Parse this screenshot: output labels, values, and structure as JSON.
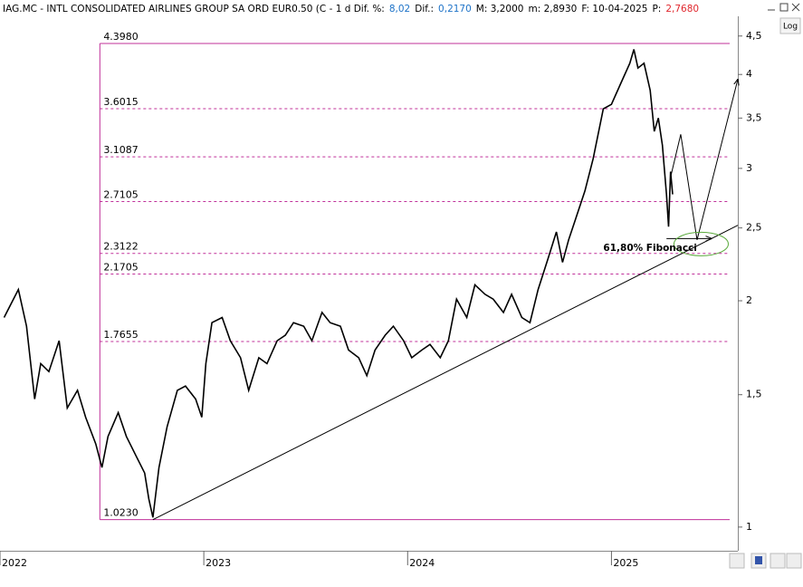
{
  "chart_data": {
    "type": "line",
    "header": [
      {
        "text": "IAG.MC - INTL CONSOLIDATED AIRLINES GROUP SA ORD EUR0.50 (C -  1 d  Dif. %:",
        "color": "#000000"
      },
      {
        "text": "8,02",
        "color": "#1e73c8"
      },
      {
        "text": "Dif.:",
        "color": "#000000"
      },
      {
        "text": "0,2170",
        "color": "#1e73c8"
      },
      {
        "text": "M: 3,2000",
        "color": "#000000"
      },
      {
        "text": "m: 2,8930",
        "color": "#000000"
      },
      {
        "text": "F: 10-04-2025",
        "color": "#000000"
      },
      {
        "text": "P:",
        "color": "#000000"
      },
      {
        "text": "2,7680",
        "color": "#e0282e"
      }
    ],
    "log_button": "Log",
    "log_scale": true,
    "xlim": [
      2022,
      2025.62
    ],
    "xticks": [
      2022,
      2023,
      2024,
      2025
    ],
    "ylim": [
      0.93,
      4.78
    ],
    "yticks": [
      1,
      {
        "value": 1.5,
        "label": "1,5"
      },
      2,
      {
        "value": 2.5,
        "label": "2,5"
      },
      3,
      {
        "value": 3.5,
        "label": "3,5"
      },
      4,
      {
        "value": 4.5,
        "label": "4,5"
      }
    ],
    "x": [
      2022.02,
      2022.09,
      2022.13,
      2022.17,
      2022.2,
      2022.24,
      2022.29,
      2022.33,
      2022.38,
      2022.42,
      2022.47,
      2022.5,
      2022.53,
      2022.58,
      2022.62,
      2022.67,
      2022.71,
      2022.73,
      2022.75,
      2022.78,
      2022.82,
      2022.87,
      2022.91,
      2022.96,
      2022.99,
      2023.01,
      2023.04,
      2023.09,
      2023.13,
      2023.18,
      2023.22,
      2023.27,
      2023.31,
      2023.36,
      2023.4,
      2023.44,
      2023.49,
      2023.53,
      2023.58,
      2023.62,
      2023.67,
      2023.71,
      2023.76,
      2023.8,
      2023.84,
      2023.89,
      2023.93,
      2023.98,
      2024.02,
      2024.07,
      2024.11,
      2024.16,
      2024.2,
      2024.24,
      2024.29,
      2024.33,
      2024.38,
      2024.42,
      2024.47,
      2024.51,
      2024.56,
      2024.6,
      2024.64,
      2024.69,
      2024.73,
      2024.76,
      2024.79,
      2024.82,
      2024.87,
      2024.91,
      2024.96,
      2025.0,
      2025.04,
      2025.09,
      2025.11,
      2025.13,
      2025.16,
      2025.19,
      2025.21,
      2025.23,
      2025.25,
      2025.27,
      2025.28,
      2025.29,
      2025.3
    ],
    "series": [
      {
        "name": "IAG.MC",
        "color": "#000000",
        "values": [
          1.9,
          2.07,
          1.85,
          1.48,
          1.65,
          1.61,
          1.77,
          1.44,
          1.52,
          1.4,
          1.29,
          1.2,
          1.32,
          1.42,
          1.32,
          1.24,
          1.18,
          1.09,
          1.03,
          1.2,
          1.36,
          1.52,
          1.54,
          1.48,
          1.4,
          1.65,
          1.87,
          1.9,
          1.77,
          1.68,
          1.52,
          1.68,
          1.65,
          1.77,
          1.8,
          1.87,
          1.85,
          1.77,
          1.93,
          1.87,
          1.85,
          1.72,
          1.68,
          1.59,
          1.72,
          1.8,
          1.85,
          1.77,
          1.68,
          1.72,
          1.75,
          1.68,
          1.77,
          2.01,
          1.9,
          2.1,
          2.04,
          2.01,
          1.93,
          2.04,
          1.9,
          1.87,
          2.07,
          2.28,
          2.47,
          2.25,
          2.41,
          2.55,
          2.8,
          3.09,
          3.6,
          3.65,
          3.86,
          4.14,
          4.32,
          4.08,
          4.14,
          3.81,
          3.36,
          3.5,
          3.22,
          2.77,
          2.51,
          2.97,
          2.77
        ]
      }
    ],
    "fib_color": "#c0309a",
    "fib_x": [
      2022.49,
      2025.58
    ],
    "fib_levels": [
      {
        "value": 4.398,
        "label": "4.3980"
      },
      {
        "value": 3.6015,
        "label": "3.6015"
      },
      {
        "value": 3.1087,
        "label": "3.1087"
      },
      {
        "value": 2.7105,
        "label": "2.7105"
      },
      {
        "value": 2.3122,
        "label": "2.3122"
      },
      {
        "value": 2.1705,
        "label": "2.1705"
      },
      {
        "value": 1.7655,
        "label": "1.7655"
      },
      {
        "value": 1.023,
        "label": "1.0230"
      }
    ],
    "trendline": {
      "x": [
        2022.75,
        2025.62
      ],
      "y": [
        1.023,
        2.52
      ]
    },
    "projection": {
      "x": [
        2025.29,
        2025.34,
        2025.42,
        2025.62
      ],
      "y": [
        2.92,
        3.33,
        2.41,
        3.94
      ]
    },
    "target_arrow": {
      "x": [
        2025.27,
        2025.49
      ],
      "y": [
        2.42,
        2.42
      ]
    },
    "target_ellipse": {
      "x": 2025.44,
      "y": 2.38,
      "color": "#5aaa3c"
    },
    "annotation": {
      "text": "61,80% Fibonacci",
      "x": 2024.96,
      "y": 2.35
    }
  }
}
